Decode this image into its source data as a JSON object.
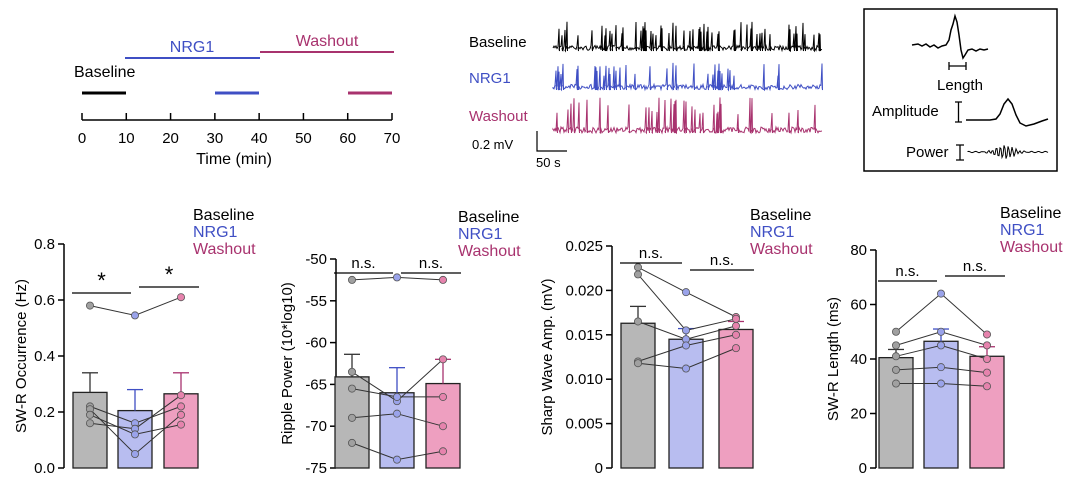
{
  "colors": {
    "baseline": "#000000",
    "nrg1": "#3f4fc4",
    "washout": "#a8326e",
    "bar_baseline": "#b7b7b7",
    "bar_nrg1": "#b8bdf0",
    "bar_washout": "#ee9fc0"
  },
  "timeline": {
    "labels": {
      "baseline": "Baseline",
      "nrg1": "NRG1",
      "washout": "Washout"
    },
    "axis_title": "Time (min)",
    "ticks": [
      "0",
      "10",
      "20",
      "30",
      "40",
      "50",
      "60",
      "70"
    ],
    "top_bars": {
      "nrg1": [
        10,
        40
      ],
      "washout": [
        40,
        70
      ],
      "baseline": [
        0,
        10
      ]
    },
    "recording_windows": {
      "baseline": [
        0,
        10
      ],
      "nrg1": [
        30,
        40
      ],
      "washout": [
        60,
        70
      ]
    }
  },
  "traces": {
    "labels": [
      "Baseline",
      "NRG1",
      "Washout"
    ],
    "scale_v": "0.2 mV",
    "scale_t": "50 s"
  },
  "inset": {
    "length_label": "Length",
    "amplitude_label": "Amplitude",
    "power_label": "Power"
  },
  "chart_data": [
    {
      "type": "bar",
      "categories": [
        "Baseline",
        "NRG1",
        "Washout"
      ],
      "legend": [
        "Baseline",
        "NRG1",
        "Washout"
      ],
      "ylabel": "SW-R  Occurrence (Hz)",
      "ylim": [
        0,
        0.8
      ],
      "yticks": [
        "0.0",
        "0.2",
        "0.4",
        "0.6",
        "0.8"
      ],
      "values": [
        0.27,
        0.205,
        0.265
      ],
      "errors": [
        0.07,
        0.075,
        0.075
      ],
      "points": [
        [
          0.58,
          0.22,
          0.21,
          0.16,
          0.19
        ],
        [
          0.545,
          0.16,
          0.05,
          0.14,
          0.12
        ],
        [
          0.61,
          0.22,
          0.19,
          0.26,
          0.155
        ]
      ],
      "sig": [
        {
          "from": 0,
          "to": 1,
          "label": "*"
        },
        {
          "from": 1,
          "to": 2,
          "label": "*"
        }
      ]
    },
    {
      "type": "bar",
      "categories": [
        "Baseline",
        "NRG1",
        "Washout"
      ],
      "legend": [
        "Baseline",
        "NRG1",
        "Washout"
      ],
      "ylabel": "Ripple Power (10*log10)",
      "ylim": [
        -75,
        -50
      ],
      "yticks": [
        "-75",
        "-70",
        "-65",
        "-60",
        "-55",
        "-50"
      ],
      "values": [
        -64.1,
        -66.0,
        -64.9
      ],
      "errors": [
        2.7,
        3.0,
        2.9
      ],
      "points": [
        [
          -52.5,
          -63.5,
          -65.5,
          -69.0,
          -72.0
        ],
        [
          -52.2,
          -67.0,
          -66.5,
          -68.5,
          -74.0
        ],
        [
          -52.5,
          -62.0,
          -66.5,
          -70.0,
          -73.0
        ]
      ],
      "sig": [
        {
          "from": 0,
          "to": 1,
          "label": "n.s."
        },
        {
          "from": 1,
          "to": 2,
          "label": "n.s."
        }
      ]
    },
    {
      "type": "bar",
      "categories": [
        "Baseline",
        "NRG1",
        "Washout"
      ],
      "legend": [
        "Baseline",
        "NRG1",
        "Washout"
      ],
      "ylabel": "Sharp Wave Amp. (mV)",
      "ylim": [
        0,
        0.025
      ],
      "yticks": [
        "0",
        "0.005",
        "0.010",
        "0.015",
        "0.020",
        "0.025"
      ],
      "values": [
        0.0163,
        0.0145,
        0.0156
      ],
      "errors": [
        0.0019,
        0.0012,
        0.0009
      ],
      "points": [
        [
          0.0226,
          0.0218,
          0.0165,
          0.012,
          0.0118
        ],
        [
          0.0198,
          0.0155,
          0.0145,
          0.0138,
          0.0112
        ],
        [
          0.017,
          0.0168,
          0.016,
          0.015,
          0.0135
        ]
      ],
      "sig": [
        {
          "from": 0,
          "to": 1,
          "label": "n.s."
        },
        {
          "from": 1,
          "to": 2,
          "label": "n.s."
        }
      ]
    },
    {
      "type": "bar",
      "categories": [
        "Baseline",
        "NRG1",
        "Washout"
      ],
      "legend": [
        "Baseline",
        "NRG1",
        "Washout"
      ],
      "ylabel": "SW-R Length (ms)",
      "ylim": [
        0,
        80
      ],
      "yticks": [
        "0",
        "20",
        "40",
        "60",
        "80"
      ],
      "values": [
        40.5,
        46.5,
        41.0
      ],
      "errors": [
        3.0,
        4.5,
        3.5
      ],
      "points": [
        [
          50,
          45,
          41,
          36,
          31
        ],
        [
          64,
          50,
          45,
          37,
          31
        ],
        [
          49,
          45,
          40,
          35,
          30
        ]
      ],
      "sig": [
        {
          "from": 0,
          "to": 1,
          "label": "n.s."
        },
        {
          "from": 1,
          "to": 2,
          "label": "n.s."
        }
      ]
    }
  ]
}
